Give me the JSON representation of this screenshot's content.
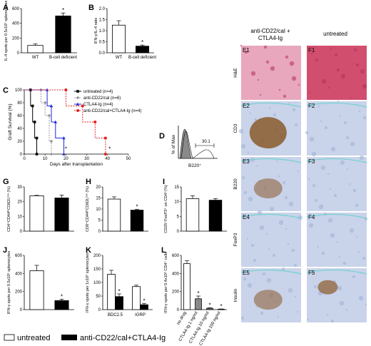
{
  "panel_letters": [
    "A",
    "B",
    "C",
    "D",
    "G",
    "H",
    "I",
    "J",
    "K",
    "L"
  ],
  "colors": {
    "black": "#000000",
    "gray": "#999999",
    "blue": "#1f2bd6",
    "red": "#e62020",
    "brown": "#8a5a2a",
    "he_pink": "#d7577a",
    "ihc_blue": "#aab7d8"
  },
  "legend_bottom": {
    "untreated": "untreated",
    "treated": "anti-CD22/cal+CTLA4-Ig"
  },
  "micrographs": {
    "col_headers": [
      "anti-CD22/cal +\nCTLA4-Ig",
      "untreated"
    ],
    "col_header_line1": "anti-CD22/cal +",
    "col_header_line2": "CTLA4-Ig",
    "col_header_right": "untreated",
    "rows": [
      "H&E",
      "CD3",
      "B220",
      "FoxP3",
      "Insulin"
    ],
    "left_labels": [
      "E1",
      "E2",
      "E3",
      "E4",
      "E5"
    ],
    "right_labels": [
      "F1",
      "F2",
      "F3",
      "F4",
      "F5"
    ]
  },
  "flow": {
    "label": "D",
    "ylabel": "% of Max",
    "xlabel": "B220⁺",
    "gate_value": "30.1"
  },
  "chart_data": [
    {
      "panel": "A",
      "type": "bar",
      "categories": [
        "WT",
        "B-cell deficient"
      ],
      "values": [
        100,
        500
      ],
      "errors": [
        20,
        40
      ],
      "ylabel": "IL-4 spots per 0.5x10⁶ splenocytes",
      "ylim": [
        0,
        600
      ],
      "yticks": [
        0,
        200,
        400,
        600
      ],
      "significance": [
        false,
        true
      ]
    },
    {
      "panel": "B",
      "type": "bar",
      "categories": [
        "WT",
        "B-cell deficient"
      ],
      "values": [
        1.25,
        0.3
      ],
      "errors": [
        0.2,
        0.05
      ],
      "ylabel": "IFN-γ/IL-4 ratio",
      "ylim": [
        0,
        2.0
      ],
      "yticks": [
        0.0,
        0.5,
        1.0,
        1.5,
        2.0
      ],
      "significance": [
        false,
        true
      ]
    },
    {
      "panel": "C",
      "type": "line",
      "title": "",
      "xlabel": "Days after transplantation",
      "ylabel": "Graft Survival (%)",
      "xlim": [
        0,
        50
      ],
      "ylim": [
        0,
        100
      ],
      "xticks": [
        0,
        10,
        20,
        30,
        40,
        50
      ],
      "yticks": [
        0,
        20,
        40,
        60,
        80,
        100
      ],
      "series": [
        {
          "name": "untreated (n=4)",
          "color": "#000000",
          "marker": "square",
          "steps": [
            [
              0,
              100
            ],
            [
              3,
              100
            ],
            [
              3,
              75
            ],
            [
              4,
              75
            ],
            [
              4,
              50
            ],
            [
              5,
              50
            ],
            [
              5,
              25
            ],
            [
              6,
              25
            ],
            [
              6,
              0
            ]
          ]
        },
        {
          "name": "anti-CD22/cal (n=6)",
          "color": "#999999",
          "marker": "diamond",
          "steps": [
            [
              0,
              100
            ],
            [
              8,
              100
            ],
            [
              8,
              80
            ],
            [
              10,
              80
            ],
            [
              10,
              60
            ],
            [
              12,
              60
            ],
            [
              12,
              20
            ],
            [
              13,
              20
            ],
            [
              13,
              0
            ]
          ]
        },
        {
          "name": "CTLA4-Ig (n=4)",
          "color": "#1f2bd6",
          "marker": "triangle",
          "steps": [
            [
              0,
              100
            ],
            [
              11,
              100
            ],
            [
              11,
              75
            ],
            [
              13,
              75
            ],
            [
              13,
              50
            ],
            [
              15,
              50
            ],
            [
              15,
              25
            ],
            [
              19,
              25
            ],
            [
              19,
              0
            ]
          ]
        },
        {
          "name": "anti-CD22/cal+CTLA4-Ig (n=4)",
          "color": "#e62020",
          "marker": "circle",
          "steps": [
            [
              0,
              100
            ],
            [
              20,
              100
            ],
            [
              20,
              75
            ],
            [
              28,
              75
            ],
            [
              28,
              50
            ],
            [
              34,
              50
            ],
            [
              34,
              25
            ],
            [
              39,
              25
            ],
            [
              39,
              0
            ]
          ]
        }
      ],
      "stars": [
        {
          "x": 20,
          "y": 5
        },
        {
          "x": 41,
          "y": 5
        }
      ]
    },
    {
      "panel": "G",
      "type": "bar",
      "categories": [
        "untreated",
        "anti-CD22/cal+CTLA4-Ig"
      ],
      "values": [
        24,
        22.5
      ],
      "errors": [
        0.3,
        2
      ],
      "ylabel": "CD4⁺CD44ʰⁱCD62Lˡᵒʷ (%)",
      "ylim": [
        0,
        30
      ],
      "yticks": [
        0,
        10,
        20,
        30
      ],
      "significance": [
        false,
        false
      ]
    },
    {
      "panel": "H",
      "type": "bar",
      "categories": [
        "untreated",
        "anti-CD22/cal+CTLA4-Ig"
      ],
      "values": [
        14.5,
        9.5
      ],
      "errors": [
        1,
        0.4
      ],
      "ylabel": "CD8⁺CD44ʰⁱCD62Lˡᵒʷ (%)",
      "ylim": [
        0,
        20
      ],
      "yticks": [
        0,
        5,
        10,
        15,
        20
      ],
      "significance": [
        false,
        true
      ]
    },
    {
      "panel": "I",
      "type": "bar",
      "categories": [
        "untreated",
        "anti-CD22/cal+CTLA4-Ig"
      ],
      "values": [
        11,
        10.5
      ],
      "errors": [
        1,
        0.5
      ],
      "ylabel": "CD25⁺FoxP3⁺ on CD4⁺(%)",
      "ylim": [
        0,
        15
      ],
      "yticks": [
        0,
        5,
        10,
        15
      ],
      "significance": [
        false,
        false
      ]
    },
    {
      "panel": "J",
      "type": "bar",
      "categories": [
        "untreated",
        "anti-CD22/cal+CTLA4-Ig"
      ],
      "values": [
        430,
        100
      ],
      "errors": [
        60,
        15
      ],
      "ylabel": "IFN-γ spots per 0.5x10⁶ splenocytes",
      "ylim": [
        0,
        600
      ],
      "yticks": [
        0,
        200,
        400,
        600
      ],
      "significance": [
        false,
        true
      ]
    },
    {
      "panel": "K",
      "type": "bar",
      "categories": [
        "BDC2.5",
        "IGRP"
      ],
      "series": [
        {
          "name": "untreated",
          "values": [
            130,
            85
          ],
          "errors": [
            15,
            5
          ]
        },
        {
          "name": "anti-CD22/cal+CTLA4-Ig",
          "values": [
            48,
            18
          ],
          "errors": [
            10,
            5
          ]
        }
      ],
      "ylabel": "IFN-γ spots per 1x10⁶ splenocytes",
      "ylim": [
        0,
        200
      ],
      "yticks": [
        0,
        50,
        100,
        150,
        200
      ],
      "significance": [
        true,
        true
      ]
    },
    {
      "panel": "L",
      "type": "bar",
      "categories": [
        "no drug",
        "CTLA4-Ig 1 ng/ml",
        "CTLA4-Ig 10 ng/ml",
        "CTLA4-Ig 100 ng/ml"
      ],
      "values": [
        510,
        120,
        15,
        5
      ],
      "errors": [
        30,
        30,
        5,
        2
      ],
      "ylabel": "IFN-γ spots per 0.4x10⁶ CD4⁺ cells",
      "ylim": [
        0,
        600
      ],
      "yticks": [
        0,
        200,
        400,
        600
      ],
      "significance": [
        false,
        true,
        true,
        true
      ]
    }
  ]
}
